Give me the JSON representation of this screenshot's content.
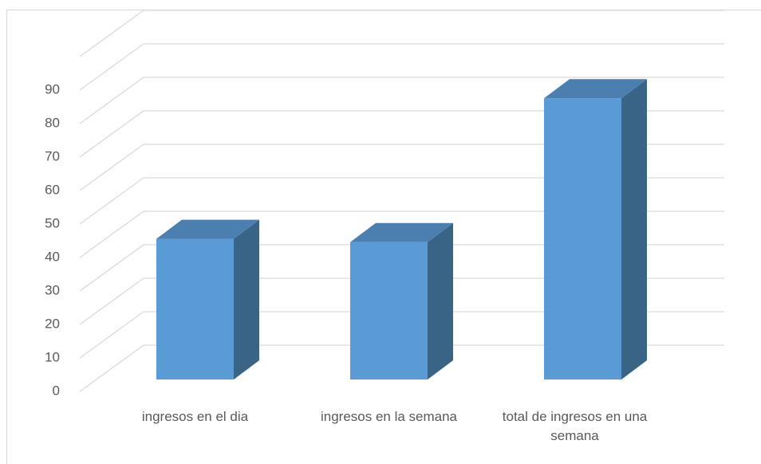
{
  "chart_data": {
    "type": "bar3d",
    "categories": [
      "ingresos en el dia",
      "ingresos en la semana",
      "total de ingresos en una semana"
    ],
    "values": [
      42,
      41,
      84
    ],
    "color": "#5b9bd5",
    "ylim": [
      0,
      100
    ],
    "yticks": [
      0,
      10,
      20,
      30,
      40,
      50,
      60,
      70,
      80,
      90
    ],
    "grid": true
  }
}
